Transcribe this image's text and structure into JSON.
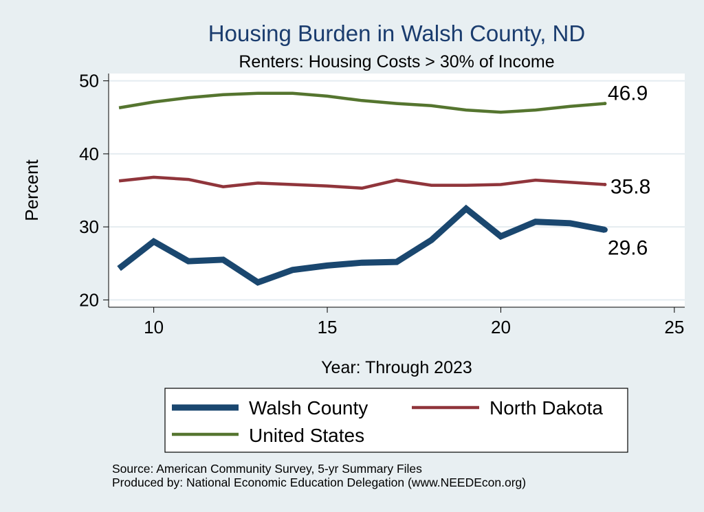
{
  "chart_data": {
    "type": "line",
    "title": "Housing Burden in Walsh County, ND",
    "subtitle": "Renters: Housing Costs > 30% of Income",
    "xlabel": "Year: Through 2023",
    "ylabel": "Percent",
    "xlim": [
      8.7,
      25.3
    ],
    "ylim": [
      19,
      51
    ],
    "xticks": [
      10,
      15,
      20,
      25
    ],
    "yticks": [
      20,
      30,
      40,
      50
    ],
    "grid": true,
    "legend_position": "bottom",
    "series": [
      {
        "name": "Walsh County",
        "color": "#1a476f",
        "x": [
          9,
          10,
          11,
          12,
          13,
          14,
          15,
          16,
          17,
          18,
          19,
          20,
          21,
          22,
          23
        ],
        "values": [
          24.3,
          28.0,
          25.3,
          25.5,
          22.4,
          24.1,
          24.7,
          25.1,
          25.2,
          28.2,
          32.5,
          28.7,
          30.7,
          30.5,
          29.6
        ],
        "end_label": "29.6"
      },
      {
        "name": "North Dakota",
        "color": "#90353b",
        "x": [
          9,
          10,
          11,
          12,
          13,
          14,
          15,
          16,
          17,
          18,
          19,
          20,
          21,
          22,
          23
        ],
        "values": [
          36.3,
          36.8,
          36.5,
          35.5,
          36.0,
          35.8,
          35.6,
          35.3,
          36.4,
          35.7,
          35.7,
          35.8,
          36.4,
          36.1,
          35.8
        ],
        "end_label": "35.8"
      },
      {
        "name": "United States",
        "color": "#55752f",
        "x": [
          9,
          10,
          11,
          12,
          13,
          14,
          15,
          16,
          17,
          18,
          19,
          20,
          21,
          22,
          23
        ],
        "values": [
          46.3,
          47.1,
          47.7,
          48.1,
          48.3,
          48.3,
          47.9,
          47.3,
          46.9,
          46.6,
          46.0,
          45.7,
          46.0,
          46.5,
          46.9
        ],
        "end_label": "46.9"
      }
    ],
    "notes": [
      "Source: American Community Survey, 5-yr Summary Files",
      "Produced by: National Economic Education Delegation (www.NEEDEcon.org)"
    ]
  }
}
